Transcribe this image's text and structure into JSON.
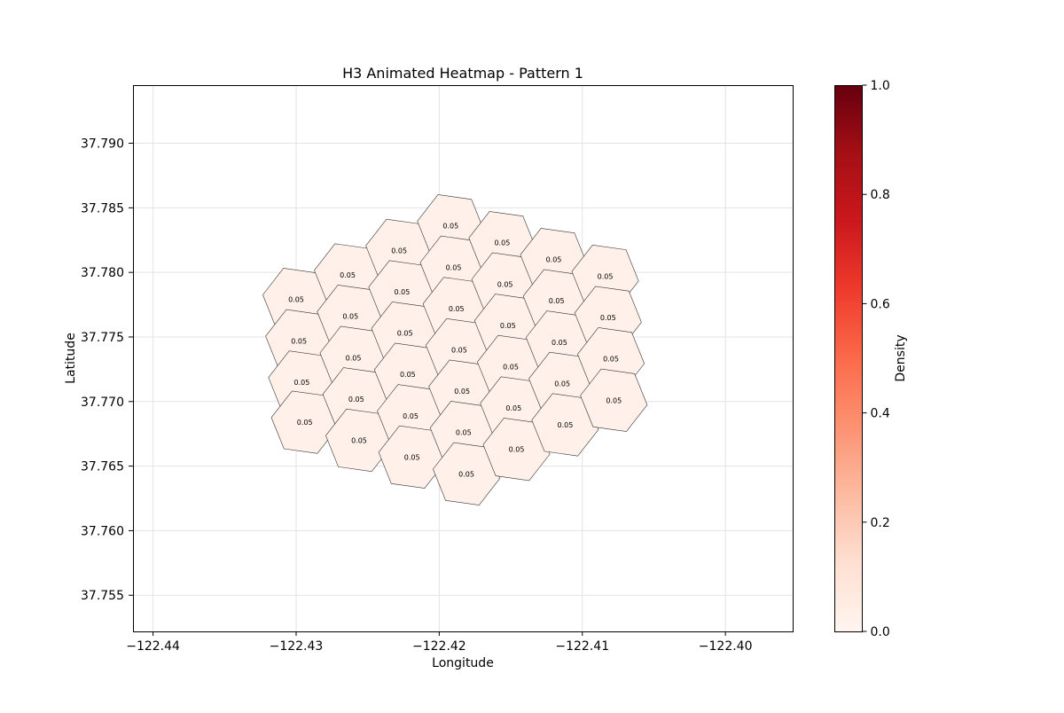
{
  "chart_data": {
    "type": "heatmap",
    "title": "H3 Animated Heatmap - Pattern 1",
    "xlabel": "Longitude",
    "ylabel": "Latitude",
    "xlim": [
      -122.4414,
      -122.3953
    ],
    "ylim": [
      37.7522,
      37.7945
    ],
    "x_ticks": [
      -122.44,
      -122.43,
      -122.42,
      -122.41,
      -122.4
    ],
    "x_tick_labels": [
      "−122.44",
      "−122.43",
      "−122.42",
      "−122.41",
      "−122.40"
    ],
    "y_ticks": [
      37.755,
      37.76,
      37.765,
      37.77,
      37.775,
      37.78,
      37.785,
      37.79
    ],
    "y_tick_labels": [
      "37.755",
      "37.760",
      "37.765",
      "37.770",
      "37.775",
      "37.780",
      "37.785",
      "37.790"
    ],
    "grid": true,
    "colorbar": {
      "label": "Density",
      "colormap": "Reds",
      "range": [
        0.0,
        1.0
      ],
      "ticks": [
        0.0,
        0.2,
        0.4,
        0.6,
        0.8,
        1.0
      ],
      "tick_labels": [
        "0.0",
        "0.2",
        "0.4",
        "0.6",
        "0.8",
        "1.0"
      ],
      "gradient_colors": [
        "#fff5f0",
        "#fee0d2",
        "#fcbba1",
        "#fc9272",
        "#fb6a4a",
        "#ef3b2c",
        "#cb181d",
        "#a50f15",
        "#67000d"
      ]
    },
    "cell_fill": "#fff0e9",
    "cell_edge": "#333333",
    "cells": [
      {
        "lon": -122.43,
        "lat": 37.7779,
        "value": 0.05,
        "label": "0.05"
      },
      {
        "lon": -122.4298,
        "lat": 37.7747,
        "value": 0.05,
        "label": "0.05"
      },
      {
        "lon": -122.4296,
        "lat": 37.7715,
        "value": 0.05,
        "label": "0.05"
      },
      {
        "lon": -122.4294,
        "lat": 37.7684,
        "value": 0.05,
        "label": "0.05"
      },
      {
        "lon": -122.4264,
        "lat": 37.7798,
        "value": 0.05,
        "label": "0.05"
      },
      {
        "lon": -122.4262,
        "lat": 37.7766,
        "value": 0.05,
        "label": "0.05"
      },
      {
        "lon": -122.426,
        "lat": 37.7734,
        "value": 0.05,
        "label": "0.05"
      },
      {
        "lon": -122.4258,
        "lat": 37.7702,
        "value": 0.05,
        "label": "0.05"
      },
      {
        "lon": -122.4256,
        "lat": 37.767,
        "value": 0.05,
        "label": "0.05"
      },
      {
        "lon": -122.4228,
        "lat": 37.7817,
        "value": 0.05,
        "label": "0.05"
      },
      {
        "lon": -122.4226,
        "lat": 37.7785,
        "value": 0.05,
        "label": "0.05"
      },
      {
        "lon": -122.4224,
        "lat": 37.7753,
        "value": 0.05,
        "label": "0.05"
      },
      {
        "lon": -122.4222,
        "lat": 37.7721,
        "value": 0.05,
        "label": "0.05"
      },
      {
        "lon": -122.422,
        "lat": 37.7689,
        "value": 0.05,
        "label": "0.05"
      },
      {
        "lon": -122.4219,
        "lat": 37.7657,
        "value": 0.05,
        "label": "0.05"
      },
      {
        "lon": -122.4192,
        "lat": 37.7836,
        "value": 0.05,
        "label": "0.05"
      },
      {
        "lon": -122.419,
        "lat": 37.7804,
        "value": 0.05,
        "label": "0.05"
      },
      {
        "lon": -122.4188,
        "lat": 37.7772,
        "value": 0.05,
        "label": "0.05"
      },
      {
        "lon": -122.4186,
        "lat": 37.774,
        "value": 0.05,
        "label": "0.05"
      },
      {
        "lon": -122.4184,
        "lat": 37.7708,
        "value": 0.05,
        "label": "0.05"
      },
      {
        "lon": -122.4183,
        "lat": 37.7676,
        "value": 0.05,
        "label": "0.05"
      },
      {
        "lon": -122.4181,
        "lat": 37.7644,
        "value": 0.05,
        "label": "0.05"
      },
      {
        "lon": -122.4156,
        "lat": 37.7823,
        "value": 0.05,
        "label": "0.05"
      },
      {
        "lon": -122.4154,
        "lat": 37.7791,
        "value": 0.05,
        "label": "0.05"
      },
      {
        "lon": -122.4152,
        "lat": 37.7759,
        "value": 0.05,
        "label": "0.05"
      },
      {
        "lon": -122.415,
        "lat": 37.7727,
        "value": 0.05,
        "label": "0.05"
      },
      {
        "lon": -122.4148,
        "lat": 37.7695,
        "value": 0.05,
        "label": "0.05"
      },
      {
        "lon": -122.4146,
        "lat": 37.7663,
        "value": 0.05,
        "label": "0.05"
      },
      {
        "lon": -122.412,
        "lat": 37.781,
        "value": 0.05,
        "label": "0.05"
      },
      {
        "lon": -122.4118,
        "lat": 37.7778,
        "value": 0.05,
        "label": "0.05"
      },
      {
        "lon": -122.4116,
        "lat": 37.7746,
        "value": 0.05,
        "label": "0.05"
      },
      {
        "lon": -122.4114,
        "lat": 37.7714,
        "value": 0.05,
        "label": "0.05"
      },
      {
        "lon": -122.4112,
        "lat": 37.7682,
        "value": 0.05,
        "label": "0.05"
      },
      {
        "lon": -122.4084,
        "lat": 37.7797,
        "value": 0.05,
        "label": "0.05"
      },
      {
        "lon": -122.4082,
        "lat": 37.7765,
        "value": 0.05,
        "label": "0.05"
      },
      {
        "lon": -122.408,
        "lat": 37.7733,
        "value": 0.05,
        "label": "0.05"
      },
      {
        "lon": -122.4078,
        "lat": 37.7701,
        "value": 0.05,
        "label": "0.05"
      }
    ]
  }
}
